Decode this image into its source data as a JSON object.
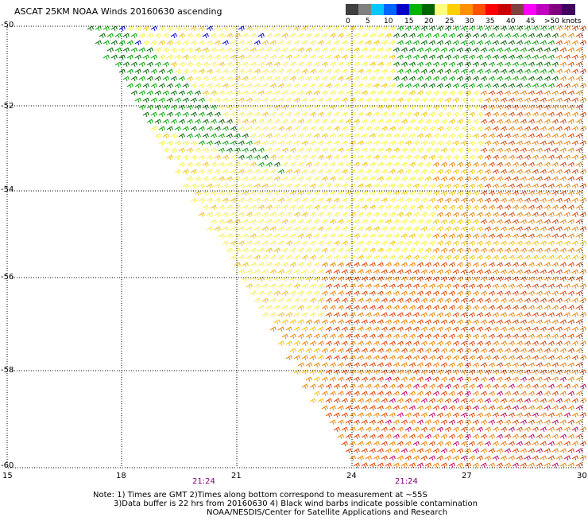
{
  "title": "ASCAT 25KM NOAA Winds 20160630 ascending",
  "colorbar": {
    "colors": [
      "#404040",
      "#808080",
      "#00c8ff",
      "#0064ff",
      "#0000c8",
      "#00b400",
      "#006400",
      "#ffff80",
      "#ffd000",
      "#ff9000",
      "#ff5000",
      "#ff0000",
      "#c80000",
      "#804040",
      "#ff00ff",
      "#c000c0",
      "#800080",
      "#400060"
    ],
    "labels": [
      "0",
      "5",
      "10",
      "15",
      "20",
      "25",
      "30",
      "35",
      "40",
      "45",
      ">50 knots"
    ]
  },
  "axes": {
    "lat_labels": [
      "-50",
      "-52",
      "-54",
      "-56",
      "-58",
      "-60"
    ],
    "lon_labels": [
      "15",
      "18",
      "21",
      "24",
      "27",
      "30"
    ]
  },
  "times": [
    "21:24",
    "21:24"
  ],
  "notes": [
    "Note: 1) Times are GMT 2)Times along bottom correspond to measurement at ~55S",
    "3)Data buffer is 22 hrs from 20160630 4) Black wind barbs indicate possible contamination",
    "NOAA/NESDIS/Center for Satellite Applications and Research"
  ],
  "wind_colors": {
    "blue": "#0000d0",
    "dark_green": "#006400",
    "green": "#00a000",
    "yellow": "#f8f040",
    "gold": "#f0c000",
    "orange": "#e88000",
    "red": "#d84000",
    "magenta": "#c00060"
  }
}
